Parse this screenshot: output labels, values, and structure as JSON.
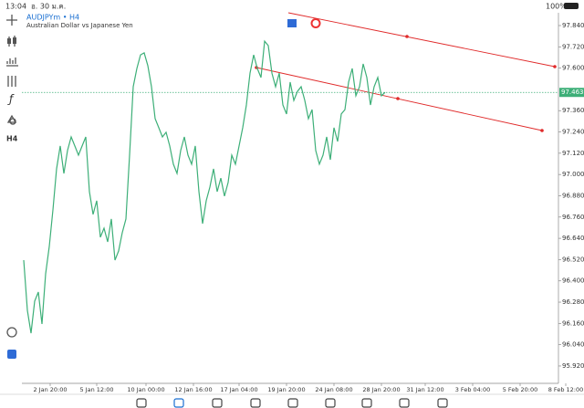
{
  "status_bar": {
    "time": "13:04",
    "date": "อ. 30 ม.ค.",
    "battery": "100%"
  },
  "chart_data": {
    "type": "line",
    "symbol": "AUDJPYm • H4",
    "description": "Australian Dollar vs Japanese Yen",
    "timeframe_button": "H4",
    "color": "#3daf78",
    "values": [
      96.517,
      96.234,
      96.105,
      96.286,
      96.337,
      96.157,
      96.44,
      96.594,
      96.8,
      97.032,
      97.161,
      97.006,
      97.135,
      97.212,
      97.161,
      97.109,
      97.161,
      97.212,
      96.903,
      96.775,
      96.852,
      96.646,
      96.697,
      96.62,
      96.749,
      96.517,
      96.569,
      96.672,
      96.749,
      97.109,
      97.495,
      97.598,
      97.675,
      97.686,
      97.614,
      97.495,
      97.315,
      97.264,
      97.212,
      97.238,
      97.161,
      97.058,
      97.006,
      97.135,
      97.212,
      97.109,
      97.058,
      97.161,
      96.903,
      96.723,
      96.852,
      96.929,
      97.032,
      96.903,
      96.98,
      96.878,
      96.955,
      97.109,
      97.058,
      97.161,
      97.264,
      97.392,
      97.572,
      97.675,
      97.598,
      97.547,
      97.752,
      97.727,
      97.572,
      97.495,
      97.572,
      97.392,
      97.341,
      97.521,
      97.418,
      97.469,
      97.495,
      97.418,
      97.315,
      97.366,
      97.135,
      97.058,
      97.109,
      97.212,
      97.083,
      97.264,
      97.186,
      97.341,
      97.366,
      97.521,
      97.598,
      97.444,
      97.495,
      97.624,
      97.547,
      97.392,
      97.495,
      97.547,
      97.444,
      97.463
    ],
    "current_price": 97.463,
    "ylim": [
      95.822,
      97.84
    ],
    "yticks": [
      {
        "value": 97.84,
        "label": "97.840"
      },
      {
        "value": 97.72,
        "label": "97.720"
      },
      {
        "value": 97.6,
        "label": "97.600"
      },
      {
        "value": 97.36,
        "label": "97.360"
      },
      {
        "value": 97.24,
        "label": "97.240"
      },
      {
        "value": 97.12,
        "label": "97.120"
      },
      {
        "value": 97.0,
        "label": "97.000"
      },
      {
        "value": 96.88,
        "label": "96.880"
      },
      {
        "value": 96.76,
        "label": "96.760"
      },
      {
        "value": 96.64,
        "label": "96.640"
      },
      {
        "value": 96.52,
        "label": "96.520"
      },
      {
        "value": 96.4,
        "label": "96.400"
      },
      {
        "value": 96.28,
        "label": "96.280"
      },
      {
        "value": 96.16,
        "label": "96.160"
      },
      {
        "value": 96.04,
        "label": "96.040"
      },
      {
        "value": 95.92,
        "label": "95.920"
      }
    ],
    "xlim": [
      0,
      146.5
    ],
    "xticks": [
      {
        "value": 7.25,
        "label": "2 Jan 20:00"
      },
      {
        "value": 20,
        "label": "5 Jan 12:00"
      },
      {
        "value": 33.5,
        "label": "10 Jan 00:00"
      },
      {
        "value": 46.5,
        "label": "12 Jan 16:00"
      },
      {
        "value": 59,
        "label": "17 Jan 04:00"
      },
      {
        "value": 72,
        "label": "19 Jan 20:00"
      },
      {
        "value": 85,
        "label": "24 Jan 08:00"
      },
      {
        "value": 98,
        "label": "28 Jan 20:00"
      },
      {
        "value": 110,
        "label": "31 Jan 12:00"
      },
      {
        "value": 123,
        "label": "3 Feb 04:00"
      },
      {
        "value": 136,
        "label": "5 Feb 20:00"
      },
      {
        "value": 148.5,
        "label": "8 Feb 12:00"
      }
    ]
  },
  "nav": [
    "ราคา",
    "กราฟ",
    "การซื้อขาย",
    "ประวัติ",
    "ข่าว",
    "กล่องจดหมาย",
    "แชท",
    "บัญชี",
    "การตั้งค่า"
  ]
}
